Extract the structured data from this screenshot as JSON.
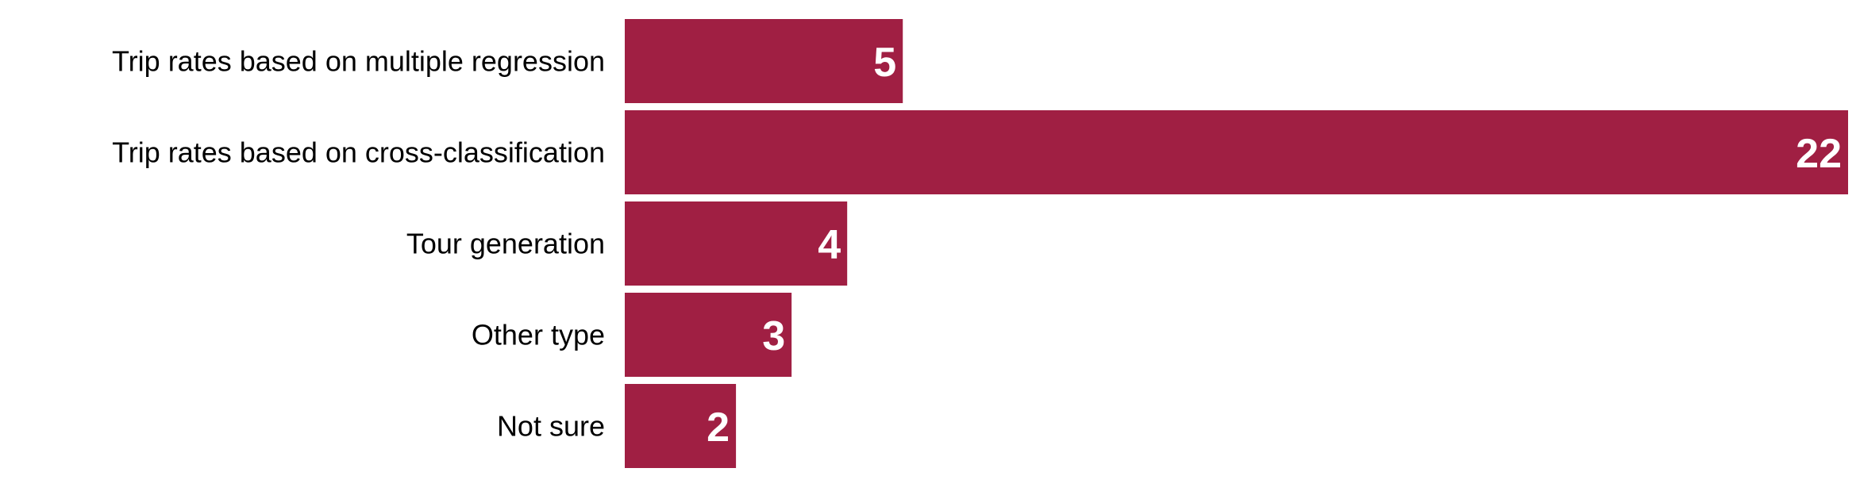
{
  "chart_data": {
    "type": "bar",
    "orientation": "horizontal",
    "categories": [
      "Trip rates based on multiple regression",
      "Trip rates based on cross-classification",
      "Tour generation",
      "Other type",
      "Not sure"
    ],
    "values": [
      5,
      22,
      4,
      3,
      2
    ],
    "xlim": [
      0,
      22
    ],
    "grid": false,
    "legend": "none",
    "bar_color": "#A01F43",
    "value_label_color": "#FFFFFF",
    "title": "",
    "xlabel": "",
    "ylabel": ""
  }
}
